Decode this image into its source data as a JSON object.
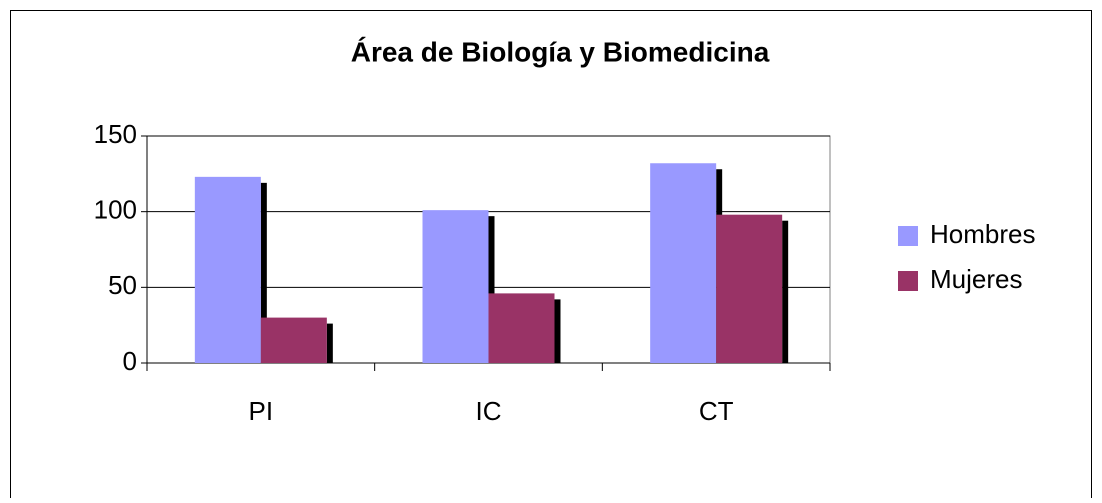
{
  "chart_data": {
    "type": "bar",
    "title": "Área de Biología y Biomedicina",
    "categories": [
      "PI",
      "IC",
      "CT"
    ],
    "series": [
      {
        "name": "Hombres",
        "color": "#9999ff",
        "values": [
          123,
          101,
          132
        ]
      },
      {
        "name": "Mujeres",
        "color": "#993366",
        "values": [
          30,
          46,
          98
        ]
      }
    ],
    "ylim": [
      0,
      150
    ],
    "yticks": [
      0,
      50,
      100,
      150
    ],
    "grid": true,
    "legend": "right",
    "shadow": true
  }
}
